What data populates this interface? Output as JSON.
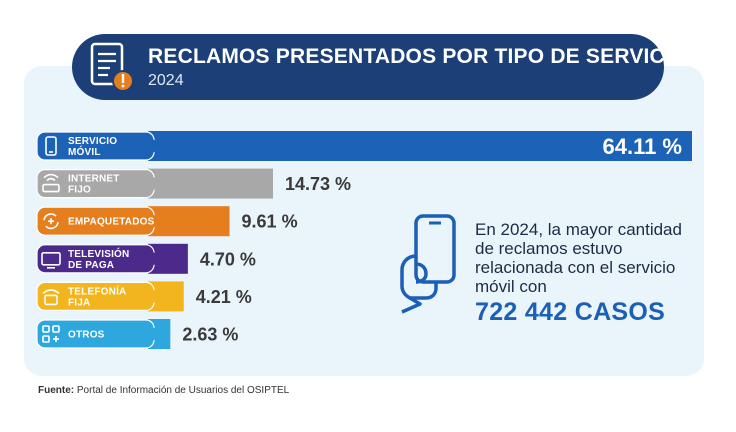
{
  "header": {
    "title": "RECLAMOS PRESENTADOS POR TIPO DE SERVICIO",
    "year": "2024"
  },
  "chart_data": {
    "type": "bar",
    "orientation": "horizontal",
    "categories": [
      {
        "line1": "SERVICIO",
        "line2": "MÓVIL"
      },
      {
        "line1": "INTERNET",
        "line2": "FIJO"
      },
      {
        "line1": "EMPAQUETADOS",
        "line2": ""
      },
      {
        "line1": "TELEVISIÓN",
        "line2": "DE PAGA"
      },
      {
        "line1": "TELEFONÍA",
        "line2": "FIJA"
      },
      {
        "line1": "OTROS",
        "line2": ""
      }
    ],
    "values": [
      64.11,
      14.73,
      9.61,
      4.7,
      4.21,
      2.63
    ],
    "value_labels": [
      "64.11 %",
      "14.73 %",
      "9.61 %",
      "4.70 %",
      "4.21 %",
      "2.63 %"
    ],
    "colors": [
      "#1c63b7",
      "#a8a8a8",
      "#e57e1c",
      "#4b2a8c",
      "#f2b51e",
      "#2ea6de"
    ],
    "icons": [
      "mobile-phone-icon",
      "router-icon",
      "bundle-arrows-icon",
      "tv-icon",
      "landline-phone-icon",
      "grid-apps-icon"
    ],
    "unit": "%"
  },
  "callout": {
    "text": "En 2024, la mayor cantidad de reclamos estuvo relacionada con el servicio móvil con",
    "number": "722 442 CASOS"
  },
  "footer": {
    "label": "Fuente:",
    "text": " Portal de Información de Usuarios del OSIPTEL"
  }
}
